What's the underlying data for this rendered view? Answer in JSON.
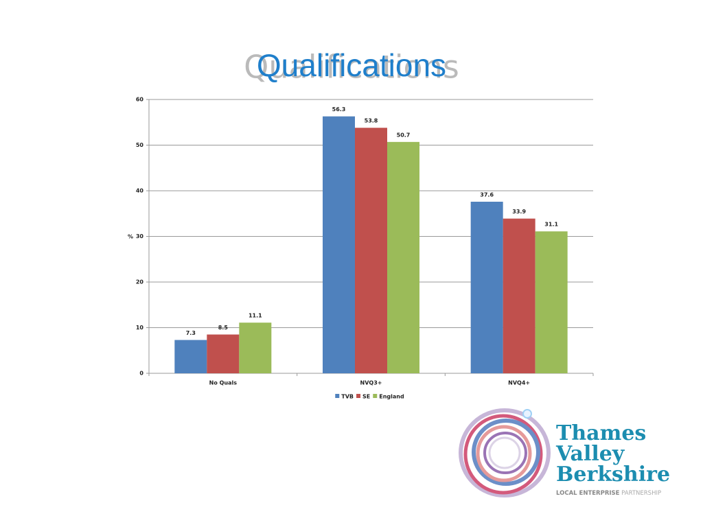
{
  "chart_data": {
    "type": "bar",
    "title": "Qualifications",
    "ylabel": "%",
    "categories": [
      "No Quals",
      "NVQ3+",
      "NVQ4+"
    ],
    "series": [
      {
        "name": "TVB",
        "color": "#4f81bd",
        "values": [
          7.3,
          56.3,
          37.6
        ]
      },
      {
        "name": "SE",
        "color": "#c0504d",
        "values": [
          8.5,
          53.8,
          33.9
        ]
      },
      {
        "name": "England",
        "color": "#9bbb59",
        "values": [
          11.1,
          50.7,
          31.1
        ]
      }
    ],
    "ylim": [
      0,
      60
    ],
    "yticks": [
      0,
      10,
      20,
      30,
      40,
      50,
      60
    ],
    "grid": true,
    "legend": "bottom"
  },
  "logo": {
    "lines": [
      "Thames",
      "Valley",
      "Berkshire"
    ],
    "tagline_bold": "LOCAL ENTERPRISE",
    "tagline_light": "PARTNERSHIP"
  }
}
